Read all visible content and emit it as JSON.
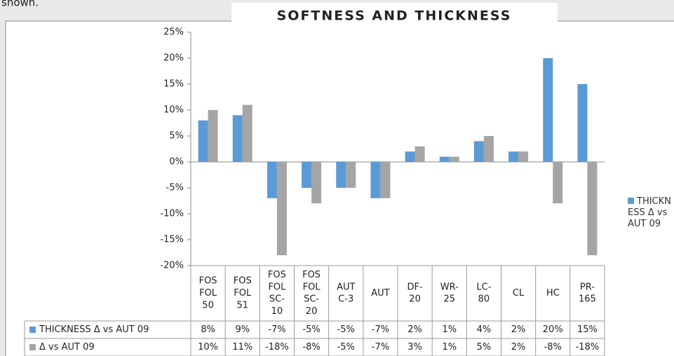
{
  "page_text": "shown.",
  "chart_data": {
    "type": "bar",
    "title": "SOFTNESS AND THICKNESS",
    "categories": [
      [
        "FOS",
        "FOL",
        "50"
      ],
      [
        "FOS",
        "FOL",
        "51"
      ],
      [
        "FOS",
        "FOL",
        "SC-",
        "10"
      ],
      [
        "FOS",
        "FOL",
        "SC-",
        "20"
      ],
      [
        "AUT",
        "C-3"
      ],
      [
        "AUT"
      ],
      [
        "DF-",
        "20"
      ],
      [
        "WR-",
        "25"
      ],
      [
        "LC-",
        "80"
      ],
      [
        "CL"
      ],
      [
        "HC"
      ],
      [
        "PR-",
        "165"
      ]
    ],
    "series": [
      {
        "name": "THICKNESS Δ vs AUT 09",
        "color": "#5b9bd5",
        "values": [
          8,
          9,
          -7,
          -5,
          -5,
          -7,
          2,
          1,
          4,
          2,
          20,
          15
        ],
        "value_labels": [
          "8%",
          "9%",
          "-7%",
          "-5%",
          "-5%",
          "-7%",
          "2%",
          "1%",
          "4%",
          "2%",
          "20%",
          "15%"
        ]
      },
      {
        "name": "Δ vs AUT 09",
        "color": "#a5a5a5",
        "values": [
          10,
          11,
          -18,
          -8,
          -5,
          -7,
          3,
          1,
          5,
          2,
          -8,
          -18
        ],
        "value_labels": [
          "10%",
          "11%",
          "-18%",
          "-8%",
          "-5%",
          "-7%",
          "3%",
          "1%",
          "5%",
          "2%",
          "-8%",
          "-18%"
        ]
      }
    ],
    "ylim": [
      -20,
      25
    ],
    "yticks": [
      {
        "value": -20,
        "label": "-20%"
      },
      {
        "value": -15,
        "label": "-15%"
      },
      {
        "value": -10,
        "label": "-10%"
      },
      {
        "value": -5,
        "label": "-5%"
      },
      {
        "value": 0,
        "label": "0%"
      },
      {
        "value": 5,
        "label": "5%"
      },
      {
        "value": 10,
        "label": "10%"
      },
      {
        "value": 15,
        "label": "15%"
      },
      {
        "value": 20,
        "label": "20%"
      },
      {
        "value": 25,
        "label": "25%"
      }
    ],
    "grid": false,
    "legend": "right"
  }
}
